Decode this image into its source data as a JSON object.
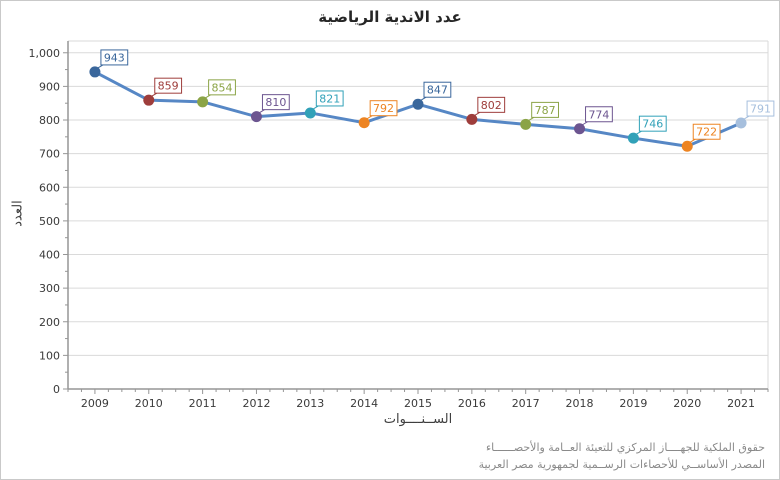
{
  "page": {
    "background": "#ffffff",
    "border_color": "#c9c9c9"
  },
  "chart_data": {
    "type": "line",
    "title": "عدد الاندية الرياضية",
    "categories": [
      "2009",
      "2010",
      "2011",
      "2012",
      "2013",
      "2014",
      "2015",
      "2016",
      "2017",
      "2018",
      "2019",
      "2020",
      "2021"
    ],
    "values": [
      943,
      859,
      854,
      810,
      821,
      792,
      847,
      802,
      787,
      774,
      746,
      722,
      791
    ],
    "xlabel": "الســنــــوات",
    "ylabel": "العدد",
    "ylim": [
      0,
      1000
    ],
    "ytick_step": 100,
    "grid": true,
    "legend": "none",
    "data_labels_visible": true,
    "line_color": "#5687C5",
    "point_colors": [
      "#3A679C",
      "#9E3D3B",
      "#8BA446",
      "#6C5590",
      "#31A1B8",
      "#ED8422",
      "#3A679C",
      "#9E3D3B",
      "#8BA446",
      "#6C5590",
      "#31A1B8",
      "#ED8422",
      "#A6BFDD"
    ],
    "gridline_color": "#DADADA",
    "axis_color": "#969696",
    "tick_label_color": "#3A3A3A"
  },
  "footer": {
    "line1": "حقوق الملكية للجهــــاز المركزي للتعيئة العــامة والأحصــــــاء",
    "line2": "المصدر الأساســي للأحصاءات الرســمية لجمهورية مصر العربية"
  }
}
